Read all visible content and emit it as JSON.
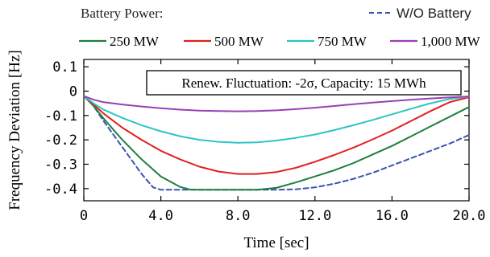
{
  "chart_data": {
    "type": "line",
    "legend_title": "Battery Power:",
    "annotation": "Renew. Fluctuation: -2σ, Capacity: 15 MWh",
    "xlabel": "Time [sec]",
    "ylabel": "Frequency Deviation [Hz]",
    "xlim": [
      0,
      20
    ],
    "ylim": [
      -0.45,
      0.13
    ],
    "x_ticks": [
      0,
      4,
      8,
      12,
      16,
      20
    ],
    "x_tick_labels": [
      "0",
      "4.0",
      "8.0",
      "12.0",
      "16.0",
      "20.0"
    ],
    "y_ticks": [
      0.1,
      0,
      -0.1,
      -0.2,
      -0.3,
      -0.4
    ],
    "y_tick_labels": [
      "0.1",
      "0",
      "-0.1",
      "-0.2",
      "-0.3",
      "-0.4"
    ],
    "grid": false,
    "legend_position": "top",
    "series": [
      {
        "name": "W/O Battery",
        "color": "#3a55b0",
        "dash": true,
        "x": [
          0,
          0.5,
          1,
          2,
          3,
          3.6,
          4,
          5,
          6,
          8,
          10,
          11,
          12,
          13,
          14,
          15,
          16,
          17,
          18,
          19,
          20
        ],
        "y": [
          -0.02,
          -0.06,
          -0.12,
          -0.23,
          -0.34,
          -0.395,
          -0.405,
          -0.405,
          -0.405,
          -0.405,
          -0.405,
          -0.403,
          -0.395,
          -0.38,
          -0.36,
          -0.335,
          -0.305,
          -0.275,
          -0.245,
          -0.215,
          -0.18
        ]
      },
      {
        "name": "250 MW",
        "color": "#1e7f3c",
        "dash": false,
        "x": [
          0,
          0.5,
          1,
          2,
          3,
          4,
          5,
          5.5,
          6,
          8,
          9,
          10,
          11,
          12,
          13,
          14,
          15,
          16,
          17,
          18,
          19,
          20
        ],
        "y": [
          -0.02,
          -0.06,
          -0.11,
          -0.2,
          -0.28,
          -0.35,
          -0.393,
          -0.404,
          -0.405,
          -0.405,
          -0.405,
          -0.397,
          -0.375,
          -0.35,
          -0.325,
          -0.295,
          -0.26,
          -0.225,
          -0.185,
          -0.145,
          -0.105,
          -0.065
        ]
      },
      {
        "name": "500 MW",
        "color": "#e02020",
        "dash": false,
        "x": [
          0,
          0.5,
          1,
          2,
          3,
          4,
          5,
          6,
          7,
          8,
          9,
          10,
          11,
          12,
          13,
          14,
          15,
          16,
          17,
          18,
          19,
          20
        ],
        "y": [
          -0.02,
          -0.055,
          -0.09,
          -0.15,
          -0.2,
          -0.245,
          -0.28,
          -0.31,
          -0.33,
          -0.34,
          -0.34,
          -0.332,
          -0.315,
          -0.29,
          -0.262,
          -0.232,
          -0.198,
          -0.162,
          -0.122,
          -0.082,
          -0.045,
          -0.025
        ]
      },
      {
        "name": "750 MW",
        "color": "#2ec4c4",
        "dash": false,
        "x": [
          0,
          0.5,
          1,
          2,
          3,
          4,
          5,
          6,
          7,
          8,
          9,
          10,
          11,
          12,
          13,
          14,
          15,
          16,
          17,
          18,
          19,
          20
        ],
        "y": [
          -0.02,
          -0.05,
          -0.075,
          -0.11,
          -0.14,
          -0.165,
          -0.185,
          -0.2,
          -0.208,
          -0.212,
          -0.21,
          -0.203,
          -0.192,
          -0.178,
          -0.16,
          -0.14,
          -0.118,
          -0.095,
          -0.072,
          -0.05,
          -0.032,
          -0.022
        ]
      },
      {
        "name": "1,000 MW",
        "color": "#9b3fb5",
        "dash": false,
        "x": [
          0,
          0.5,
          1,
          2,
          3,
          4,
          5,
          6,
          7,
          8,
          9,
          10,
          11,
          12,
          13,
          14,
          15,
          16,
          17,
          18,
          19,
          20
        ],
        "y": [
          -0.02,
          -0.035,
          -0.045,
          -0.055,
          -0.063,
          -0.07,
          -0.076,
          -0.08,
          -0.082,
          -0.083,
          -0.082,
          -0.079,
          -0.074,
          -0.068,
          -0.061,
          -0.054,
          -0.047,
          -0.041,
          -0.035,
          -0.03,
          -0.026,
          -0.022
        ]
      }
    ]
  }
}
